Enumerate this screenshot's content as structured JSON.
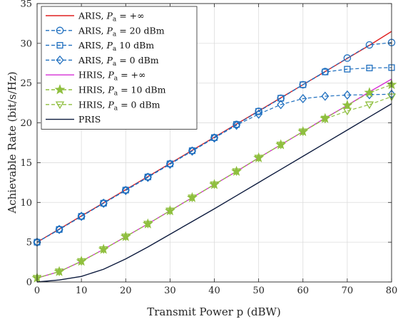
{
  "chart_data": {
    "type": "line",
    "title": "",
    "xlabel": "Transmit Power p (dBW)",
    "ylabel": "Achievable Rate (bit/s/Hz)",
    "xlim": [
      0,
      80
    ],
    "ylim": [
      0,
      35
    ],
    "xticks": [
      0,
      10,
      20,
      30,
      40,
      50,
      60,
      70,
      80
    ],
    "yticks": [
      0,
      5,
      10,
      15,
      20,
      25,
      30,
      35
    ],
    "grid": true,
    "legend_position": "top-left",
    "x": [
      0,
      5,
      10,
      15,
      20,
      25,
      30,
      35,
      40,
      45,
      50,
      55,
      60,
      65,
      70,
      75,
      80
    ],
    "series": [
      {
        "name": "ARIS, Pa = +∞",
        "color": "#e02020",
        "dash": "solid",
        "marker": "none",
        "values": [
          5.0,
          6.65,
          8.3,
          9.95,
          11.6,
          13.25,
          14.9,
          16.55,
          18.2,
          19.85,
          21.5,
          23.15,
          24.8,
          26.45,
          28.1,
          29.75,
          31.5
        ]
      },
      {
        "name": "ARIS, Pa = 20 dBm",
        "color": "#1f6fbf",
        "dash": "dashed",
        "marker": "circle",
        "values": [
          5.0,
          6.6,
          8.25,
          9.9,
          11.55,
          13.2,
          14.85,
          16.5,
          18.15,
          19.8,
          21.45,
          23.1,
          24.8,
          26.45,
          28.15,
          29.8,
          30.1
        ]
      },
      {
        "name": "ARIS, Pa = 10 dBm",
        "color": "#1f6fbf",
        "dash": "dashed",
        "marker": "square",
        "values": [
          5.0,
          6.6,
          8.25,
          9.9,
          11.55,
          13.2,
          14.85,
          16.5,
          18.15,
          19.8,
          21.45,
          23.1,
          24.8,
          26.4,
          26.75,
          26.9,
          26.95
        ]
      },
      {
        "name": "ARIS, Pa = 0 dBm",
        "color": "#1f6fbf",
        "dash": "dashed",
        "marker": "diamond",
        "values": [
          5.0,
          6.6,
          8.25,
          9.9,
          11.5,
          13.15,
          14.8,
          16.45,
          18.1,
          19.7,
          21.1,
          22.3,
          23.05,
          23.35,
          23.5,
          23.55,
          23.6
        ]
      },
      {
        "name": "HRIS, Pa = +∞",
        "color": "#d62fd6",
        "dash": "solid",
        "marker": "none",
        "values": [
          0.5,
          1.3,
          2.6,
          4.1,
          5.7,
          7.3,
          8.95,
          10.6,
          12.25,
          13.9,
          15.6,
          17.25,
          18.9,
          20.6,
          22.2,
          23.9,
          25.5
        ]
      },
      {
        "name": "HRIS, Pa = 10 dBm",
        "color": "#8fbf3f",
        "dash": "dashed",
        "marker": "star",
        "values": [
          0.5,
          1.3,
          2.6,
          4.1,
          5.7,
          7.3,
          8.95,
          10.6,
          12.25,
          13.9,
          15.6,
          17.25,
          18.9,
          20.55,
          22.2,
          23.8,
          24.8
        ]
      },
      {
        "name": "HRIS, Pa = 0 dBm",
        "color": "#8fbf3f",
        "dash": "dashed",
        "marker": "triangle-down",
        "values": [
          0.5,
          1.3,
          2.6,
          4.1,
          5.7,
          7.3,
          8.95,
          10.6,
          12.25,
          13.9,
          15.6,
          17.25,
          18.9,
          20.5,
          21.5,
          22.3,
          23.3
        ]
      },
      {
        "name": "PRIS",
        "color": "#0d1b3e",
        "dash": "solid",
        "marker": "none",
        "values": [
          0.0,
          0.25,
          0.7,
          1.6,
          2.9,
          4.4,
          6.0,
          7.6,
          9.2,
          10.85,
          12.5,
          14.15,
          15.8,
          17.45,
          19.1,
          20.75,
          22.4
        ]
      }
    ],
    "legend": [
      {
        "prefix": "ARIS, ",
        "var": "P",
        "sub": "a",
        "suffix": " = +∞"
      },
      {
        "prefix": "ARIS, ",
        "var": "P",
        "sub": "a",
        "suffix": " = 20 dBm"
      },
      {
        "prefix": "ARIS, ",
        "var": "P",
        "sub": "a",
        "suffix": "   10 dBm"
      },
      {
        "prefix": "ARIS, ",
        "var": "P",
        "sub": "a",
        "suffix": " = 0 dBm"
      },
      {
        "prefix": "HRIS, ",
        "var": "P",
        "sub": "a",
        "suffix": " = +∞"
      },
      {
        "prefix": "HRIS, ",
        "var": "P",
        "sub": "a",
        "suffix": " = 10 dBm"
      },
      {
        "prefix": "HRIS, ",
        "var": "P",
        "sub": "a",
        "suffix": " = 0 dBm"
      },
      {
        "prefix": "PRIS",
        "var": "",
        "sub": "",
        "suffix": ""
      }
    ]
  }
}
